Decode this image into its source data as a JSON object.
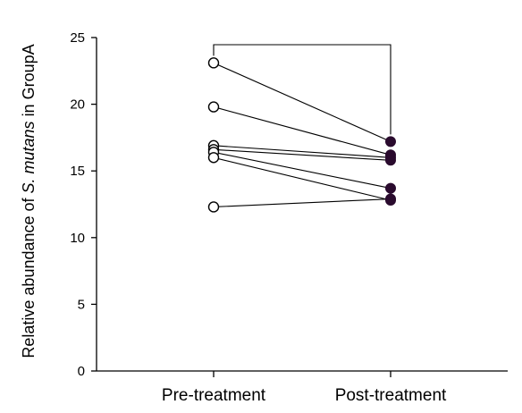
{
  "chart_data": {
    "type": "scatter",
    "subtype": "paired-before-after",
    "title": "",
    "ylabel": {
      "prefix": "Relative abundance of ",
      "italic": "S. mutans",
      "suffix": " in GroupA"
    },
    "xlabel": "",
    "categories": [
      "Pre-treatment",
      "Post-treatment"
    ],
    "ylim": [
      0,
      25
    ],
    "yticks": [
      0,
      5,
      10,
      15,
      20,
      25
    ],
    "grid": false,
    "legend": "none",
    "comparison_bracket": true,
    "pairs": [
      {
        "pre": 23.1,
        "post": 17.2
      },
      {
        "pre": 19.8,
        "post": 16.2
      },
      {
        "pre": 16.9,
        "post": 16.0
      },
      {
        "pre": 16.6,
        "post": 15.8
      },
      {
        "pre": 16.4,
        "post": 13.7
      },
      {
        "pre": 16.0,
        "post": 12.8
      },
      {
        "pre": 12.3,
        "post": 12.9
      }
    ],
    "colors": {
      "pre_marker_fill": "#ffffff",
      "pre_marker_stroke": "#000000",
      "post_marker_fill": "#2a0b2e",
      "post_marker_stroke": "#2a0b2e",
      "lines": "#000000"
    }
  }
}
